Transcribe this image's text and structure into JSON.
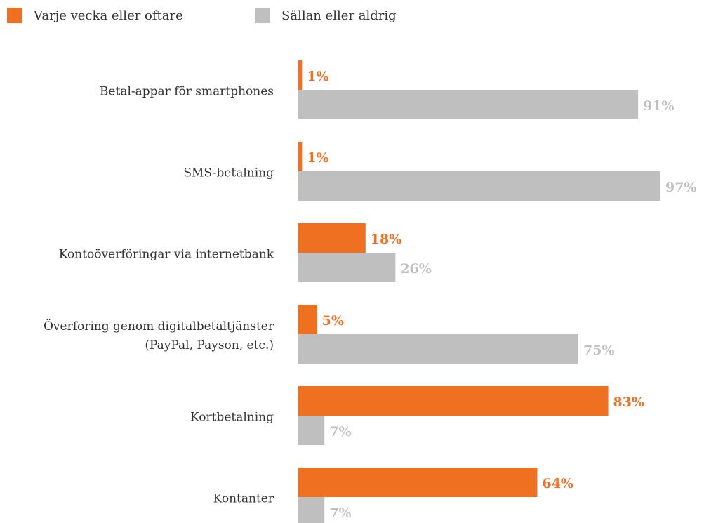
{
  "chart_data": {
    "type": "barh",
    "categories": [
      "Betal-appar för smartphones",
      "SMS-betalning",
      "Kontoöverföringar via internetbank",
      "Överforing genom digitalbetaltjänster (PayPal, Payson, etc.)",
      "Kortbetalning",
      "Kontanter"
    ],
    "series": [
      {
        "name": "Varje vecka eller oftare",
        "color": "#f07022",
        "values": [
          1,
          1,
          18,
          5,
          83,
          64
        ],
        "value_labels": [
          "1%",
          "1%",
          "18%",
          "5%",
          "83%",
          "64%"
        ]
      },
      {
        "name": "Sällan eller aldrig",
        "color": "#bfbfbf",
        "values": [
          91,
          97,
          26,
          75,
          7,
          7
        ],
        "value_labels": [
          "91%",
          "97%",
          "26%",
          "75%",
          "7%",
          "7%"
        ]
      }
    ],
    "xlim": [
      0,
      100
    ],
    "legend": "top-left"
  }
}
